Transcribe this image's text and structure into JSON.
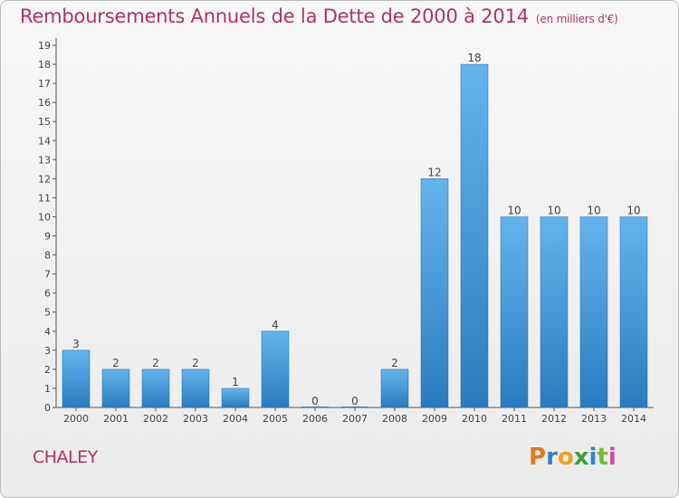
{
  "title": "Remboursements Annuels de la Dette de 2000 à 2014",
  "subtitle": "(en milliers d'€)",
  "town": "CHALEY",
  "logo": {
    "letters": [
      "P",
      "r",
      "o",
      "x",
      "i",
      "t",
      "i"
    ],
    "colors": [
      "#e07a1f",
      "#3b7fc4",
      "#f0a020",
      "#3ca03c",
      "#2f86d6",
      "#7ab83a",
      "#d04aa0"
    ]
  },
  "colors": {
    "bar_top": "#64b4ec",
    "bar_bottom": "#2a7cbe",
    "title": "#b0345f"
  },
  "chart_data": {
    "type": "bar",
    "title": "Remboursements Annuels de la Dette de 2000 à 2014",
    "subtitle": "(en milliers d'€)",
    "categories": [
      "2000",
      "2001",
      "2002",
      "2003",
      "2004",
      "2005",
      "2006",
      "2007",
      "2008",
      "2009",
      "2010",
      "2011",
      "2012",
      "2013",
      "2014"
    ],
    "values": [
      3,
      2,
      2,
      2,
      1,
      4,
      0,
      0,
      2,
      12,
      18,
      10,
      10,
      10,
      10
    ],
    "ylim": [
      0,
      19
    ],
    "yticks": [
      0,
      1,
      2,
      3,
      4,
      5,
      6,
      7,
      8,
      9,
      10,
      11,
      12,
      13,
      14,
      15,
      16,
      17,
      18,
      19
    ],
    "grid": false,
    "data_labels": true
  }
}
